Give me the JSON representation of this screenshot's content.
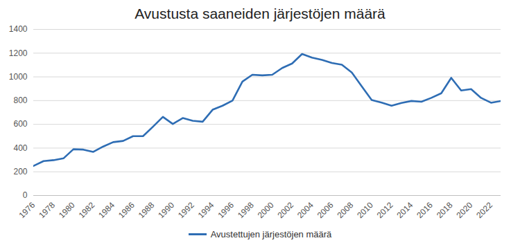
{
  "chart_data": {
    "type": "line",
    "title": "Avustusta saaneiden järjestöjen määrä",
    "x": [
      1976,
      1977,
      1978,
      1979,
      1980,
      1981,
      1982,
      1983,
      1984,
      1985,
      1986,
      1987,
      1988,
      1989,
      1990,
      1991,
      1992,
      1993,
      1994,
      1995,
      1996,
      1997,
      1998,
      1999,
      2000,
      2001,
      2002,
      2003,
      2004,
      2005,
      2006,
      2007,
      2008,
      2009,
      2010,
      2011,
      2012,
      2013,
      2014,
      2015,
      2016,
      2017,
      2018,
      2019,
      2020,
      2021,
      2022,
      2023
    ],
    "series": [
      {
        "name": "Avustettujen järjestöjen määrä",
        "color": "#2e6db4",
        "values": [
          250,
          290,
          298,
          313,
          390,
          387,
          368,
          413,
          450,
          460,
          500,
          500,
          580,
          663,
          603,
          653,
          630,
          622,
          723,
          757,
          800,
          960,
          1018,
          1013,
          1018,
          1075,
          1113,
          1193,
          1162,
          1143,
          1117,
          1102,
          1037,
          920,
          805,
          783,
          757,
          780,
          797,
          790,
          823,
          862,
          992,
          885,
          897,
          823,
          782,
          797
        ]
      }
    ],
    "xlim": [
      1976,
      2023
    ],
    "xticks": [
      1976,
      1978,
      1980,
      1982,
      1984,
      1986,
      1988,
      1990,
      1992,
      1994,
      1996,
      1998,
      2000,
      2002,
      2004,
      2006,
      2008,
      2010,
      2012,
      2014,
      2016,
      2018,
      2020,
      2022
    ],
    "ylim": [
      0,
      1400
    ],
    "yticks": [
      0,
      200,
      400,
      600,
      800,
      1000,
      1200,
      1400
    ],
    "grid": true,
    "legend": "bottom"
  }
}
